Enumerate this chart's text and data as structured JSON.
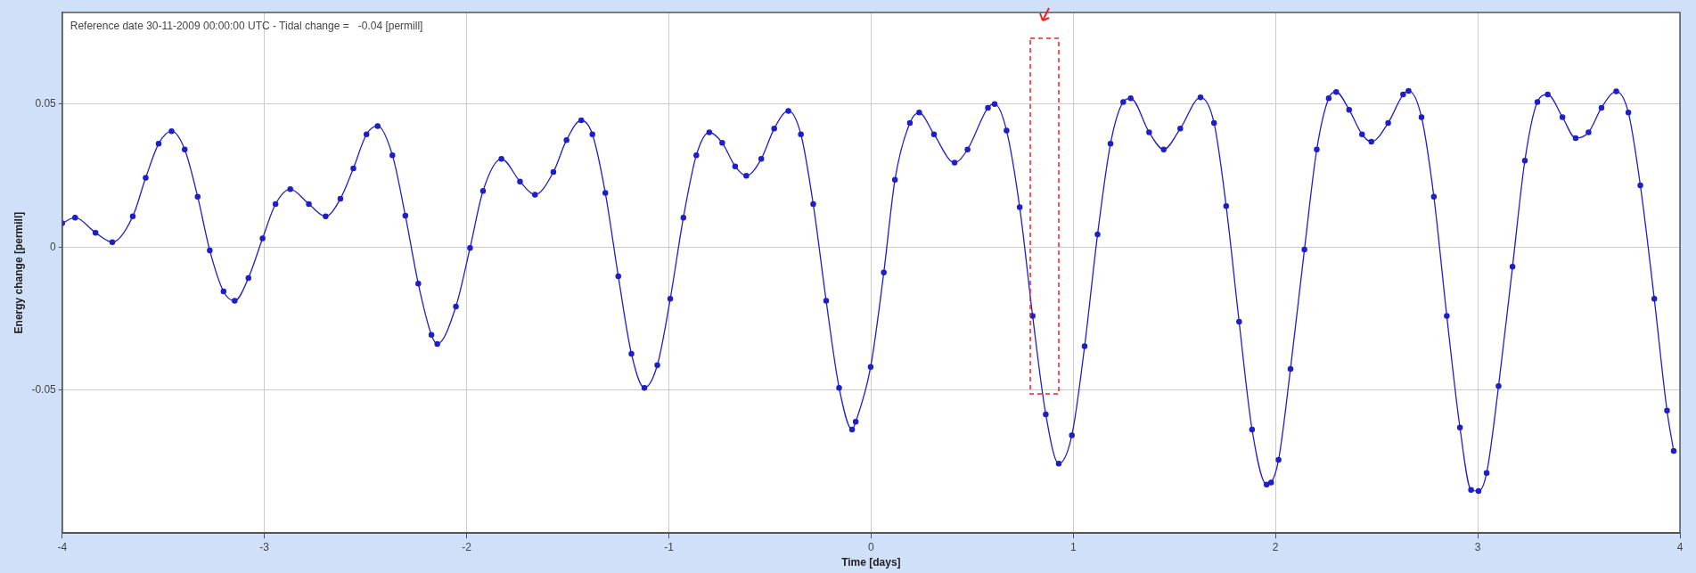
{
  "chart_data": {
    "type": "line",
    "xlabel": "Time [days]",
    "ylabel": "Energy change [permill]",
    "annotations": [
      "Reference date 30-11-2009 00:00:00 UTC - Tidal change =   -0.04 [permill]"
    ],
    "xlim": [
      -4,
      4
    ],
    "xticks": [
      -4,
      -3,
      -2,
      -1,
      0,
      1,
      2,
      3,
      4
    ],
    "ylim": [
      -0.1,
      0.082
    ],
    "yticks": [
      -0.05,
      0,
      0.05
    ],
    "grid": true,
    "legend": false,
    "marker": "circle",
    "line_style": "solid",
    "series": [
      {
        "color": "#1f1fc8",
        "x": [
          -4.0,
          -3.936,
          -3.835,
          -3.752,
          -3.651,
          -3.587,
          -3.523,
          -3.459,
          -3.394,
          -3.33,
          -3.27,
          -3.202,
          -3.147,
          -3.079,
          -3.009,
          -2.945,
          -2.872,
          -2.78,
          -2.697,
          -2.624,
          -2.56,
          -2.495,
          -2.44,
          -2.367,
          -2.303,
          -2.239,
          -2.174,
          -2.145,
          -2.053,
          -1.983,
          -1.919,
          -1.828,
          -1.736,
          -1.662,
          -1.571,
          -1.506,
          -1.433,
          -1.378,
          -1.314,
          -1.25,
          -1.185,
          -1.121,
          -1.057,
          -0.993,
          -0.928,
          -0.864,
          -0.8,
          -0.736,
          -0.672,
          -0.617,
          -0.543,
          -0.479,
          -0.409,
          -0.347,
          -0.286,
          -0.222,
          -0.158,
          -0.094,
          -0.076,
          -0.002,
          0.063,
          0.118,
          0.192,
          0.238,
          0.311,
          0.413,
          0.477,
          0.578,
          0.611,
          0.67,
          0.735,
          0.799,
          0.864,
          0.928,
          0.993,
          1.056,
          1.12,
          1.184,
          1.247,
          1.284,
          1.375,
          1.447,
          1.529,
          1.629,
          1.696,
          1.756,
          1.82,
          1.884,
          1.956,
          1.978,
          2.015,
          2.074,
          2.143,
          2.204,
          2.263,
          2.3,
          2.364,
          2.428,
          2.474,
          2.557,
          2.631,
          2.658,
          2.722,
          2.783,
          2.847,
          2.912,
          2.967,
          3.004,
          3.044,
          3.103,
          3.172,
          3.233,
          3.295,
          3.346,
          3.419,
          3.484,
          3.548,
          3.612,
          3.685,
          3.745,
          3.804,
          3.873,
          3.936,
          3.969
        ],
        "values": [
          0.0083,
          0.0103,
          0.005,
          0.0017,
          0.0107,
          0.0242,
          0.0361,
          0.0405,
          0.0341,
          0.0176,
          -0.0012,
          -0.0155,
          -0.0188,
          -0.0108,
          0.003,
          0.015,
          0.0202,
          0.015,
          0.0107,
          0.0169,
          0.0275,
          0.0394,
          0.0423,
          0.0321,
          0.011,
          -0.0128,
          -0.0307,
          -0.0339,
          -0.0208,
          -0.0003,
          0.0196,
          0.0308,
          0.0229,
          0.0183,
          0.0262,
          0.0374,
          0.0443,
          0.0394,
          0.0189,
          -0.0102,
          -0.0373,
          -0.0492,
          -0.0413,
          -0.0181,
          0.0103,
          0.0321,
          0.0401,
          0.0364,
          0.0282,
          0.0249,
          0.0308,
          0.0414,
          0.0476,
          0.0394,
          0.015,
          -0.0188,
          -0.0492,
          -0.0638,
          -0.0611,
          -0.0419,
          -0.0089,
          0.0235,
          0.0434,
          0.047,
          0.0394,
          0.0295,
          0.0341,
          0.0487,
          0.05,
          0.0407,
          0.0139,
          -0.0241,
          -0.0585,
          -0.0757,
          -0.0658,
          -0.0347,
          0.0044,
          0.0361,
          0.0507,
          0.052,
          0.0401,
          0.0341,
          0.0414,
          0.0523,
          0.0434,
          0.0143,
          -0.0261,
          -0.0638,
          -0.083,
          -0.0823,
          -0.0744,
          -0.0426,
          -0.0009,
          0.0341,
          0.052,
          0.0542,
          0.048,
          0.0394,
          0.0368,
          0.0434,
          0.0533,
          0.0546,
          0.0454,
          0.0176,
          -0.0241,
          -0.0631,
          -0.0849,
          -0.0853,
          -0.079,
          -0.0486,
          -0.0069,
          0.0302,
          0.0507,
          0.0533,
          0.0454,
          0.0381,
          0.0401,
          0.0487,
          0.0544,
          0.047,
          0.0216,
          -0.0181,
          -0.0572,
          -0.0713
        ]
      }
    ]
  }
}
